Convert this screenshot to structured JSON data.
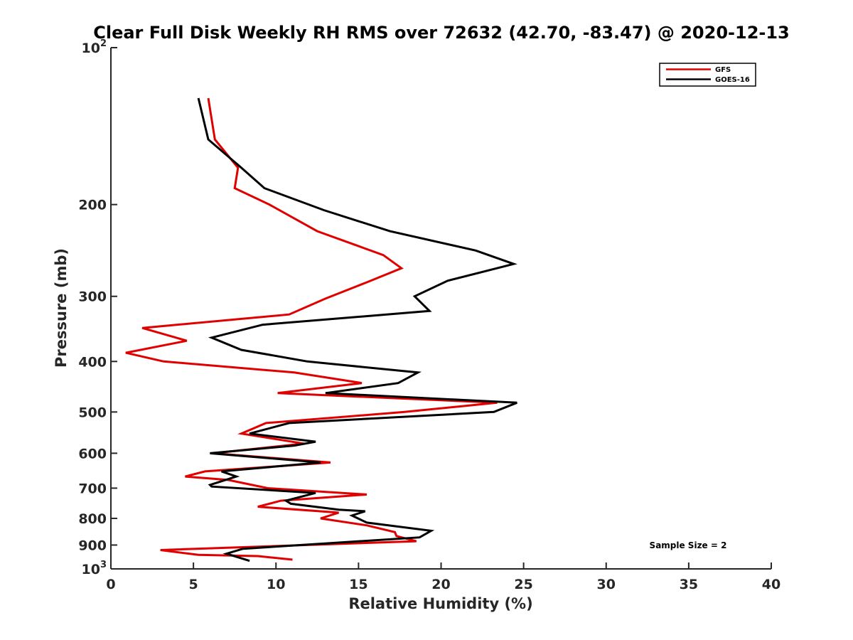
{
  "chart_data": {
    "type": "line",
    "title": "Clear Full Disk Weekly RH RMS over 72632 (42.70, -83.47) @ 2020-12-13",
    "xlabel": "Relative Humidity (%)",
    "ylabel": "Pressure (mb)",
    "xlim": [
      0,
      40
    ],
    "ylim": [
      100,
      1000
    ],
    "y_scale": "log",
    "y_reversed": true,
    "x_ticks": [
      "0",
      "5",
      "10",
      "15",
      "20",
      "25",
      "30",
      "35",
      "40"
    ],
    "y_ticks": [
      {
        "value": 100,
        "base": "10",
        "exp": "2"
      },
      {
        "value": 200,
        "label": "200"
      },
      {
        "value": 300,
        "label": "300"
      },
      {
        "value": 400,
        "label": "400"
      },
      {
        "value": 500,
        "label": "500"
      },
      {
        "value": 600,
        "label": "600"
      },
      {
        "value": 700,
        "label": "700"
      },
      {
        "value": 800,
        "label": "800"
      },
      {
        "value": 900,
        "label": "900"
      },
      {
        "value": 1000,
        "base": "10",
        "exp": "3"
      }
    ],
    "legend_position": "top-right",
    "annotation": "Sample Size = 2",
    "series": [
      {
        "name": "GFS",
        "color": "#e00000",
        "points": [
          [
            5.9,
            125
          ],
          [
            6.3,
            150
          ],
          [
            7.7,
            170
          ],
          [
            7.5,
            186
          ],
          [
            9.6,
            200
          ],
          [
            12.5,
            225
          ],
          [
            16.5,
            250
          ],
          [
            17.6,
            265
          ],
          [
            15.5,
            282
          ],
          [
            13.0,
            303
          ],
          [
            10.8,
            325
          ],
          [
            1.9,
            345
          ],
          [
            4.6,
            365
          ],
          [
            0.9,
            385
          ],
          [
            3.2,
            400
          ],
          [
            11.1,
            420
          ],
          [
            15.2,
            440
          ],
          [
            10.1,
            460
          ],
          [
            23.4,
            480
          ],
          [
            17.8,
            500
          ],
          [
            9.4,
            525
          ],
          [
            7.9,
            550
          ],
          [
            11.7,
            575
          ],
          [
            6.2,
            600
          ],
          [
            13.3,
            625
          ],
          [
            5.7,
            650
          ],
          [
            4.5,
            665
          ],
          [
            7.1,
            675
          ],
          [
            9.5,
            700
          ],
          [
            15.5,
            720
          ],
          [
            10.3,
            740
          ],
          [
            8.9,
            760
          ],
          [
            13.8,
            780
          ],
          [
            12.7,
            800
          ],
          [
            15.5,
            825
          ],
          [
            17.2,
            850
          ],
          [
            17.3,
            865
          ],
          [
            18.5,
            885
          ],
          [
            3.0,
            920
          ],
          [
            5.3,
            940
          ],
          [
            8.9,
            945
          ],
          [
            11.0,
            960
          ]
        ]
      },
      {
        "name": "GOES-16",
        "color": "#000000",
        "points": [
          [
            5.3,
            125
          ],
          [
            5.9,
            150
          ],
          [
            7.9,
            170
          ],
          [
            9.3,
            186
          ],
          [
            12.9,
            205
          ],
          [
            16.9,
            225
          ],
          [
            22.1,
            245
          ],
          [
            24.4,
            260
          ],
          [
            20.4,
            280
          ],
          [
            18.4,
            300
          ],
          [
            19.3,
            320
          ],
          [
            9.2,
            340
          ],
          [
            6.1,
            360
          ],
          [
            7.9,
            380
          ],
          [
            11.9,
            400
          ],
          [
            18.6,
            420
          ],
          [
            17.4,
            440
          ],
          [
            13.0,
            460
          ],
          [
            24.6,
            480
          ],
          [
            23.2,
            500
          ],
          [
            10.8,
            525
          ],
          [
            8.4,
            550
          ],
          [
            12.4,
            570
          ],
          [
            11.1,
            580
          ],
          [
            6.0,
            600
          ],
          [
            12.7,
            625
          ],
          [
            6.7,
            650
          ],
          [
            7.6,
            665
          ],
          [
            6.0,
            690
          ],
          [
            6.1,
            695
          ],
          [
            12.4,
            715
          ],
          [
            10.6,
            740
          ],
          [
            10.9,
            750
          ],
          [
            13.8,
            770
          ],
          [
            15.4,
            775
          ],
          [
            14.6,
            790
          ],
          [
            15.5,
            815
          ],
          [
            19.4,
            845
          ],
          [
            18.7,
            870
          ],
          [
            8.0,
            915
          ],
          [
            7.0,
            935
          ],
          [
            8.4,
            965
          ]
        ]
      }
    ]
  }
}
